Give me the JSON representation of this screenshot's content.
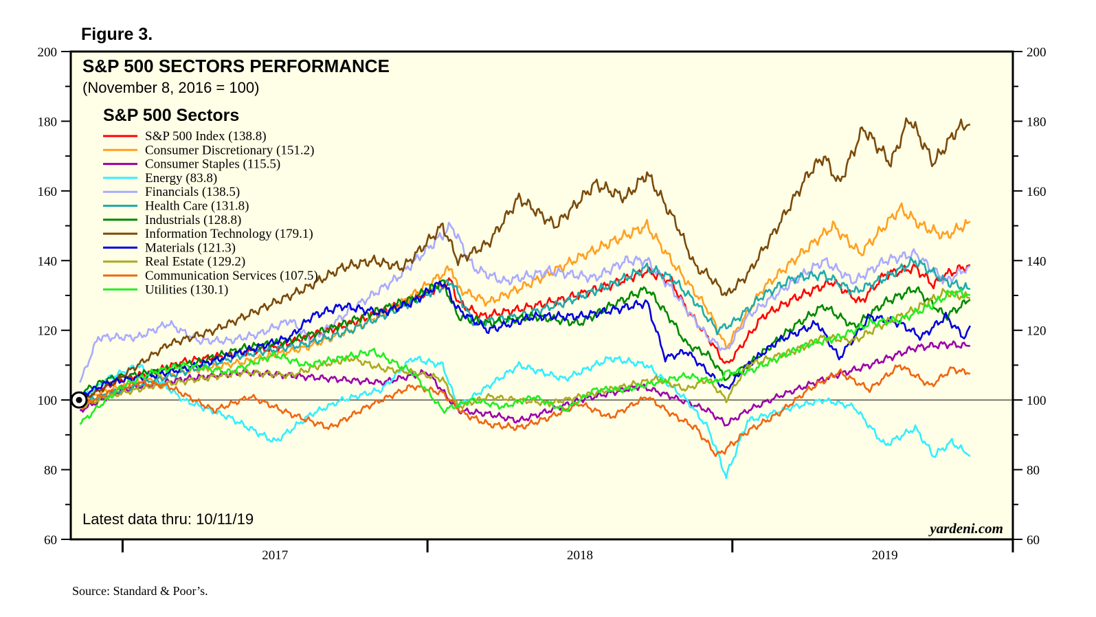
{
  "figure_label": "Figure 3.",
  "source": "Source: Standard & Poor’s.",
  "chart_data": {
    "type": "line",
    "title": "S&P 500 SECTORS PERFORMANCE",
    "subtitle": "(November 8, 2016 = 100)",
    "legend_title": "S&P 500 Sectors",
    "legend_position": "top-left",
    "latest_note": "Latest data thru: 10/11/19",
    "watermark": "yardeni.com",
    "baseline": 100,
    "ylim": [
      60,
      200
    ],
    "yticks": [
      60,
      80,
      100,
      120,
      140,
      160,
      180,
      200
    ],
    "ytick_labels": [
      "60",
      "80",
      "100",
      "120",
      "140",
      "160",
      "180",
      "200"
    ],
    "xlim": [
      2016.83,
      2019.92
    ],
    "xtick_years": [
      2017,
      2018,
      2019
    ],
    "xtick_labels": [
      "2017",
      "2018",
      "2019"
    ],
    "x_boundaries": [
      2017,
      2018,
      2019
    ],
    "start_x": 2016.857,
    "series": [
      {
        "label": "S&P 500 Index (138.8)",
        "color": "#ff0000",
        "x": [
          2016.86,
          2017.0,
          2017.1,
          2017.2,
          2017.35,
          2017.5,
          2017.6,
          2017.75,
          2017.9,
          2018.08,
          2018.1,
          2018.18,
          2018.3,
          2018.45,
          2018.6,
          2018.72,
          2018.8,
          2018.85,
          2018.92,
          2018.98,
          2019.0,
          2019.1,
          2019.2,
          2019.33,
          2019.42,
          2019.5,
          2019.6,
          2019.66,
          2019.7,
          2019.78
        ],
        "values": [
          100,
          106,
          108,
          111,
          113,
          115,
          118,
          122,
          127,
          134,
          128,
          124,
          126,
          129,
          133,
          137,
          134,
          126,
          118,
          110,
          112,
          124,
          129,
          134,
          128,
          136,
          138,
          133,
          136,
          138.8
        ]
      },
      {
        "label": "Consumer Discretionary (151.2)",
        "color": "#ffa020",
        "x": [
          2016.86,
          2017.0,
          2017.2,
          2017.4,
          2017.6,
          2017.75,
          2017.9,
          2018.08,
          2018.1,
          2018.2,
          2018.35,
          2018.5,
          2018.62,
          2018.72,
          2018.8,
          2018.85,
          2018.92,
          2018.98,
          2019.0,
          2019.1,
          2019.2,
          2019.33,
          2019.42,
          2019.55,
          2019.62,
          2019.7,
          2019.78
        ],
        "values": [
          100,
          104,
          108,
          111,
          115,
          120,
          127,
          138,
          132,
          128,
          134,
          141,
          146,
          150,
          140,
          134,
          126,
          115,
          118,
          132,
          140,
          150,
          142,
          155,
          150,
          147,
          151.2
        ]
      },
      {
        "label": "Consumer Staples (115.5)",
        "color": "#9900aa",
        "x": [
          2016.86,
          2017.0,
          2017.2,
          2017.4,
          2017.55,
          2017.7,
          2017.85,
          2018.0,
          2018.1,
          2018.2,
          2018.3,
          2018.4,
          2018.5,
          2018.6,
          2018.7,
          2018.8,
          2018.92,
          2018.98,
          2019.05,
          2019.15,
          2019.3,
          2019.45,
          2019.6,
          2019.7,
          2019.78
        ],
        "values": [
          97,
          103,
          106,
          108,
          107,
          106,
          105,
          108,
          97,
          96,
          94,
          97,
          100,
          102,
          104,
          101,
          97,
          93,
          97,
          101,
          106,
          110,
          115,
          116,
          115.5
        ]
      },
      {
        "label": "Energy (83.8)",
        "color": "#33eeff",
        "x": [
          2016.86,
          2016.95,
          2017.05,
          2017.2,
          2017.35,
          2017.5,
          2017.62,
          2017.72,
          2017.85,
          2017.95,
          2018.05,
          2018.1,
          2018.2,
          2018.3,
          2018.45,
          2018.6,
          2018.72,
          2018.85,
          2018.92,
          2018.98,
          2019.05,
          2019.2,
          2019.3,
          2019.4,
          2019.5,
          2019.6,
          2019.66,
          2019.72,
          2019.78
        ],
        "values": [
          100,
          106,
          110,
          100,
          95,
          88,
          96,
          100,
          103,
          112,
          110,
          98,
          104,
          110,
          106,
          112,
          110,
          100,
          92,
          78,
          94,
          98,
          100,
          98,
          87,
          92,
          84,
          88,
          83.8
        ]
      },
      {
        "label": "Financials (138.5)",
        "color": "#aaaaff",
        "x": [
          2016.86,
          2016.92,
          2017.05,
          2017.15,
          2017.25,
          2017.35,
          2017.45,
          2017.55,
          2017.62,
          2017.75,
          2017.9,
          2018.08,
          2018.15,
          2018.25,
          2018.4,
          2018.55,
          2018.65,
          2018.72,
          2018.8,
          2018.85,
          2018.92,
          2018.98,
          2019.05,
          2019.2,
          2019.3,
          2019.4,
          2019.5,
          2019.6,
          2019.7,
          2019.78
        ],
        "values": [
          105,
          118,
          118,
          122,
          117,
          117,
          119,
          123,
          117,
          126,
          135,
          150,
          138,
          134,
          137,
          135,
          140,
          140,
          132,
          126,
          118,
          114,
          124,
          134,
          140,
          134,
          140,
          142,
          134,
          138.5
        ]
      },
      {
        "label": "Health Care (131.8)",
        "color": "#20aaaa",
        "x": [
          2016.86,
          2017.0,
          2017.2,
          2017.4,
          2017.6,
          2017.75,
          2017.9,
          2018.08,
          2018.15,
          2018.3,
          2018.45,
          2018.6,
          2018.72,
          2018.8,
          2018.88,
          2018.95,
          2019.0,
          2019.1,
          2019.2,
          2019.3,
          2019.4,
          2019.5,
          2019.6,
          2019.7,
          2019.78
        ],
        "values": [
          99,
          103,
          108,
          113,
          116,
          120,
          126,
          134,
          122,
          124,
          128,
          133,
          138,
          135,
          128,
          120,
          122,
          130,
          135,
          136,
          131,
          135,
          140,
          134,
          131.8
        ]
      },
      {
        "label": "Industrials (128.8)",
        "color": "#008800",
        "x": [
          2016.86,
          2016.95,
          2017.1,
          2017.25,
          2017.4,
          2017.55,
          2017.7,
          2017.85,
          2017.95,
          2018.05,
          2018.1,
          2018.2,
          2018.35,
          2018.5,
          2018.6,
          2018.72,
          2018.8,
          2018.85,
          2018.92,
          2018.98,
          2019.05,
          2019.2,
          2019.3,
          2019.4,
          2019.5,
          2019.6,
          2019.7,
          2019.78
        ],
        "values": [
          102,
          106,
          108,
          111,
          115,
          117,
          121,
          126,
          129,
          134,
          124,
          122,
          124,
          122,
          127,
          132,
          123,
          116,
          113,
          106,
          110,
          121,
          127,
          121,
          128,
          132,
          124,
          128.8
        ]
      },
      {
        "label": "Information Technology (179.1)",
        "color": "#7a4a0a",
        "x": [
          2016.86,
          2016.95,
          2017.05,
          2017.15,
          2017.3,
          2017.45,
          2017.6,
          2017.72,
          2017.82,
          2017.92,
          2018.05,
          2018.1,
          2018.2,
          2018.3,
          2018.42,
          2018.55,
          2018.65,
          2018.72,
          2018.82,
          2018.88,
          2018.92,
          2018.98,
          2019.05,
          2019.15,
          2019.25,
          2019.3,
          2019.35,
          2019.43,
          2019.52,
          2019.58,
          2019.66,
          2019.74,
          2019.78
        ],
        "values": [
          100,
          104,
          110,
          116,
          120,
          126,
          132,
          138,
          140,
          138,
          150,
          140,
          145,
          158,
          150,
          162,
          158,
          165,
          150,
          138,
          136,
          130,
          136,
          150,
          165,
          170,
          162,
          178,
          168,
          181,
          168,
          178,
          179.1
        ]
      },
      {
        "label": "Materials (121.3)",
        "color": "#0000dd",
        "x": [
          2016.86,
          2016.95,
          2017.1,
          2017.25,
          2017.4,
          2017.55,
          2017.62,
          2017.72,
          2017.85,
          2017.95,
          2018.05,
          2018.1,
          2018.2,
          2018.35,
          2018.5,
          2018.62,
          2018.72,
          2018.78,
          2018.85,
          2018.92,
          2018.98,
          2019.05,
          2019.15,
          2019.28,
          2019.35,
          2019.45,
          2019.55,
          2019.62,
          2019.7,
          2019.76,
          2019.78
        ],
        "values": [
          101,
          105,
          107,
          110,
          114,
          118,
          124,
          127,
          125,
          128,
          134,
          126,
          120,
          124,
          124,
          126,
          128,
          112,
          114,
          108,
          103,
          110,
          117,
          122,
          112,
          124,
          122,
          118,
          124,
          118,
          121.3
        ]
      },
      {
        "label": "Real Estate (129.2)",
        "color": "#aaaa20",
        "x": [
          2016.86,
          2016.95,
          2017.1,
          2017.25,
          2017.4,
          2017.55,
          2017.65,
          2017.75,
          2017.85,
          2017.95,
          2018.05,
          2018.1,
          2018.2,
          2018.3,
          2018.4,
          2018.55,
          2018.65,
          2018.75,
          2018.85,
          2018.92,
          2018.98,
          2019.05,
          2019.2,
          2019.3,
          2019.4,
          2019.5,
          2019.6,
          2019.7,
          2019.78
        ],
        "values": [
          98,
          101,
          104,
          106,
          108,
          107,
          110,
          112,
          109,
          108,
          106,
          98,
          101,
          100,
          99,
          102,
          104,
          106,
          103,
          106,
          100,
          110,
          114,
          118,
          117,
          122,
          126,
          131,
          129.2
        ]
      },
      {
        "label": "Communication Services (107.5)",
        "color": "#ee6611",
        "x": [
          2016.86,
          2016.95,
          2017.05,
          2017.15,
          2017.3,
          2017.42,
          2017.55,
          2017.68,
          2017.8,
          2017.95,
          2018.05,
          2018.12,
          2018.2,
          2018.3,
          2018.4,
          2018.5,
          2018.6,
          2018.72,
          2018.8,
          2018.88,
          2018.95,
          2018.98,
          2019.05,
          2019.15,
          2019.25,
          2019.35,
          2019.45,
          2019.55,
          2019.65,
          2019.72,
          2019.78
        ],
        "values": [
          98,
          102,
          105,
          104,
          97,
          101,
          96,
          92,
          98,
          104,
          102,
          96,
          93,
          92,
          95,
          99,
          95,
          101,
          96,
          92,
          84,
          86,
          91,
          96,
          103,
          108,
          103,
          110,
          104,
          109,
          107.5
        ]
      },
      {
        "label": "Utilities (130.1)",
        "color": "#22ee22",
        "x": [
          2016.86,
          2016.92,
          2017.0,
          2017.1,
          2017.2,
          2017.35,
          2017.5,
          2017.6,
          2017.72,
          2017.82,
          2017.95,
          2018.05,
          2018.15,
          2018.25,
          2018.35,
          2018.45,
          2018.55,
          2018.65,
          2018.75,
          2018.85,
          2018.95,
          2018.98,
          2019.05,
          2019.15,
          2019.25,
          2019.35,
          2019.45,
          2019.55,
          2019.65,
          2019.72,
          2019.78
        ],
        "values": [
          93,
          98,
          104,
          108,
          110,
          108,
          113,
          110,
          112,
          114,
          108,
          97,
          100,
          98,
          101,
          97,
          103,
          103,
          105,
          107,
          105,
          108,
          108,
          112,
          116,
          118,
          122,
          123,
          127,
          131,
          130.1
        ]
      }
    ]
  }
}
